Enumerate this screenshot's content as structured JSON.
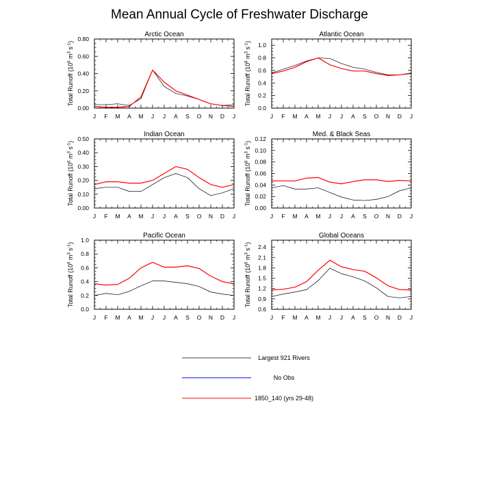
{
  "title": "Mean Annual Cycle of Freshwater Discharge",
  "months": [
    "J",
    "F",
    "M",
    "A",
    "M",
    "J",
    "J",
    "A",
    "S",
    "O",
    "N",
    "D",
    "J"
  ],
  "ylabel": "Total Runoff (10^6 m^3 s^-1)",
  "ylabel_parts": {
    "a": "Total Runoff (10",
    "e1": "6",
    "b": " m",
    "e2": "3",
    "c": " s",
    "e3": "-1",
    "d": ")"
  },
  "legend": [
    {
      "label": "Largest 921 Rivers",
      "color": "#000000"
    },
    {
      "label": "No Obs",
      "color": "#0000ff"
    },
    {
      "label": "1850_140 (yrs 29-48)",
      "color": "#ff0000"
    }
  ],
  "chart_data": [
    {
      "type": "line",
      "title": "Arctic Ocean",
      "categories": [
        "J",
        "F",
        "M",
        "A",
        "M",
        "J",
        "J",
        "A",
        "S",
        "O",
        "N",
        "D",
        "J"
      ],
      "ylim": [
        0,
        0.8
      ],
      "yticks": [
        "0.00",
        "0.20",
        "0.40",
        "0.60",
        "0.80"
      ],
      "series": [
        {
          "name": "Largest 921 Rivers",
          "color": "#000000",
          "values": [
            0.04,
            0.04,
            0.05,
            0.03,
            0.11,
            0.44,
            0.25,
            0.17,
            0.14,
            0.1,
            0.05,
            0.03,
            0.04
          ]
        },
        {
          "name": "1850_140 (yrs 29-48)",
          "color": "#ff0000",
          "values": [
            0.02,
            0.01,
            0.01,
            0.02,
            0.13,
            0.44,
            0.3,
            0.2,
            0.15,
            0.1,
            0.05,
            0.03,
            0.02
          ]
        }
      ]
    },
    {
      "type": "line",
      "title": "Atlantic Ocean",
      "categories": [
        "J",
        "F",
        "M",
        "A",
        "M",
        "J",
        "J",
        "A",
        "S",
        "O",
        "N",
        "D",
        "J"
      ],
      "ylim": [
        0,
        1.1
      ],
      "yticks": [
        "0.0",
        "0.2",
        "0.4",
        "0.6",
        "0.8",
        "1.0"
      ],
      "series": [
        {
          "name": "Largest 921 Rivers",
          "color": "#000000",
          "values": [
            0.56,
            0.62,
            0.68,
            0.75,
            0.8,
            0.79,
            0.71,
            0.65,
            0.62,
            0.57,
            0.53,
            0.53,
            0.56
          ]
        },
        {
          "name": "1850_140 (yrs 29-48)",
          "color": "#ff0000",
          "values": [
            0.55,
            0.59,
            0.65,
            0.74,
            0.8,
            0.69,
            0.63,
            0.59,
            0.59,
            0.55,
            0.52,
            0.53,
            0.55
          ]
        }
      ]
    },
    {
      "type": "line",
      "title": "Indian Ocean",
      "categories": [
        "J",
        "F",
        "M",
        "A",
        "M",
        "J",
        "J",
        "A",
        "S",
        "O",
        "N",
        "D",
        "J"
      ],
      "ylim": [
        0,
        0.5
      ],
      "yticks": [
        "0.00",
        "0.10",
        "0.20",
        "0.30",
        "0.40",
        "0.50"
      ],
      "series": [
        {
          "name": "Largest 921 Rivers",
          "color": "#000000",
          "values": [
            0.14,
            0.15,
            0.15,
            0.12,
            0.12,
            0.17,
            0.22,
            0.25,
            0.22,
            0.14,
            0.09,
            0.11,
            0.14
          ]
        },
        {
          "name": "1850_140 (yrs 29-48)",
          "color": "#ff0000",
          "values": [
            0.17,
            0.19,
            0.19,
            0.18,
            0.18,
            0.2,
            0.25,
            0.3,
            0.28,
            0.22,
            0.17,
            0.15,
            0.17
          ]
        }
      ]
    },
    {
      "type": "line",
      "title": "Med. & Black Seas",
      "categories": [
        "J",
        "F",
        "M",
        "A",
        "M",
        "J",
        "J",
        "A",
        "S",
        "O",
        "N",
        "D",
        "J"
      ],
      "ylim": [
        0,
        0.12
      ],
      "yticks": [
        "0.00",
        "0.02",
        "0.04",
        "0.06",
        "0.08",
        "0.10",
        "0.12"
      ],
      "series": [
        {
          "name": "Largest 921 Rivers",
          "color": "#000000",
          "values": [
            0.035,
            0.039,
            0.033,
            0.033,
            0.035,
            0.027,
            0.019,
            0.014,
            0.013,
            0.015,
            0.02,
            0.03,
            0.035
          ]
        },
        {
          "name": "1850_140 (yrs 29-48)",
          "color": "#ff0000",
          "values": [
            0.047,
            0.047,
            0.047,
            0.052,
            0.053,
            0.045,
            0.042,
            0.046,
            0.049,
            0.049,
            0.046,
            0.048,
            0.047
          ]
        }
      ]
    },
    {
      "type": "line",
      "title": "Pacific Ocean",
      "categories": [
        "J",
        "F",
        "M",
        "A",
        "M",
        "J",
        "J",
        "A",
        "S",
        "O",
        "N",
        "D",
        "J"
      ],
      "ylim": [
        0,
        1.0
      ],
      "yticks": [
        "0.0",
        "0.2",
        "0.4",
        "0.6",
        "0.8",
        "1.0"
      ],
      "series": [
        {
          "name": "Largest 921 Rivers",
          "color": "#000000",
          "values": [
            0.2,
            0.23,
            0.21,
            0.26,
            0.34,
            0.41,
            0.41,
            0.39,
            0.37,
            0.33,
            0.25,
            0.22,
            0.2
          ]
        },
        {
          "name": "1850_140 (yrs 29-48)",
          "color": "#ff0000",
          "values": [
            0.37,
            0.35,
            0.36,
            0.45,
            0.6,
            0.68,
            0.61,
            0.61,
            0.63,
            0.59,
            0.48,
            0.4,
            0.37
          ]
        }
      ]
    },
    {
      "type": "line",
      "title": "Global Oceans",
      "categories": [
        "J",
        "F",
        "M",
        "A",
        "M",
        "J",
        "J",
        "A",
        "S",
        "O",
        "N",
        "D",
        "J"
      ],
      "ylim": [
        0.6,
        2.6
      ],
      "yticks": [
        "0.6",
        "0.9",
        "1.2",
        "1.5",
        "1.8",
        "2.1",
        "2.4"
      ],
      "series": [
        {
          "name": "Largest 921 Rivers",
          "color": "#000000",
          "values": [
            0.97,
            1.04,
            1.1,
            1.17,
            1.43,
            1.79,
            1.63,
            1.54,
            1.42,
            1.22,
            0.97,
            0.93,
            0.97
          ]
        },
        {
          "name": "1850_140 (yrs 29-48)",
          "color": "#ff0000",
          "values": [
            1.16,
            1.18,
            1.24,
            1.4,
            1.73,
            2.02,
            1.83,
            1.75,
            1.7,
            1.51,
            1.28,
            1.17,
            1.16
          ]
        }
      ]
    }
  ]
}
